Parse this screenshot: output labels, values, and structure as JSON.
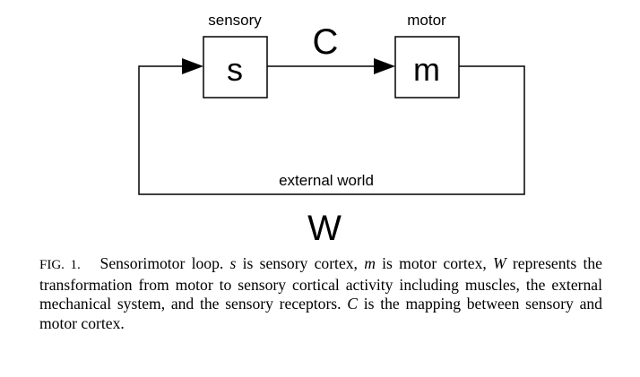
{
  "diagram": {
    "blocks": [
      {
        "id": "s",
        "symbol": "s",
        "label": "sensory"
      },
      {
        "id": "m",
        "symbol": "m",
        "label": "motor"
      }
    ],
    "forward_symbol": "C",
    "loop_label": "external world",
    "loop_symbol": "W"
  },
  "caption": {
    "fig_label": "FIG. 1.",
    "title": "Sensorimotor loop.",
    "seg": [
      "s",
      " is sensory cortex, ",
      "m",
      " is motor cortex, ",
      "W",
      " represents the transformation from motor to sensory cortical activity including muscles, the external mechanical system, and the sensory receptors. ",
      "C",
      " is the mapping between sensory and motor cortex."
    ]
  }
}
